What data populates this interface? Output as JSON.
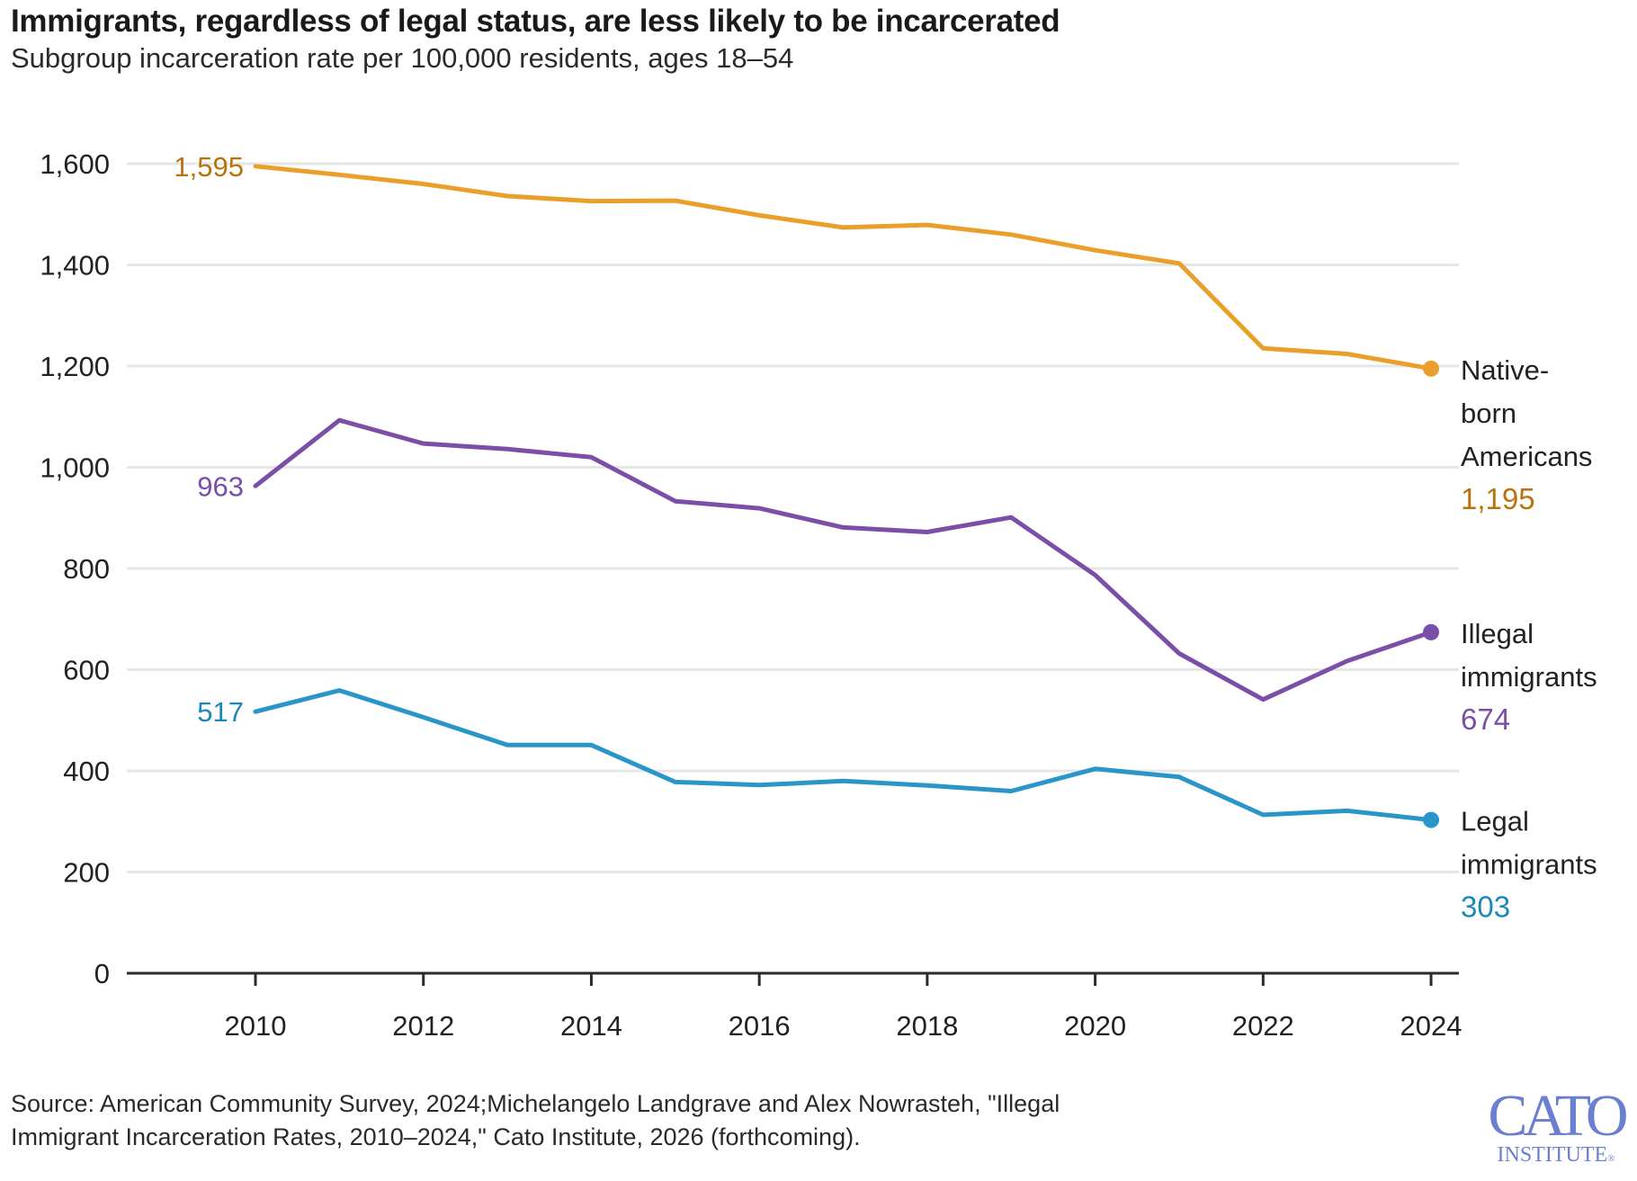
{
  "title": "Immigrants, regardless of legal status, are less likely to be incarcerated",
  "subtitle": "Subgroup incarceration rate per 100,000 residents, ages 18–54",
  "source": {
    "line1": "Source: American Community Survey, 2024;Michelangelo Landgrave and Alex Nowrasteh, \"Illegal",
    "line2": "Immigrant Incarceration Rates, 2010–2024,\" Cato Institute, 2026 (forthcoming)."
  },
  "logo": {
    "main": "CATO",
    "sub": "INSTITUTE",
    "mark": "®",
    "color": "#6b7fd0"
  },
  "chart_data": {
    "type": "line",
    "title": "Immigrants, regardless of legal status, are less likely to be incarcerated",
    "subtitle": "Subgroup incarceration rate per 100,000 residents, ages 18–54",
    "xlabel": "",
    "ylabel": "",
    "x": [
      2010,
      2011,
      2012,
      2013,
      2014,
      2015,
      2016,
      2017,
      2018,
      2019,
      2020,
      2021,
      2022,
      2023,
      2024
    ],
    "xlim": [
      2008.5,
      2024.35
    ],
    "ylim": [
      0,
      1600
    ],
    "x_ticks": [
      2010,
      2012,
      2014,
      2016,
      2018,
      2020,
      2022,
      2024
    ],
    "x_tick_labels": [
      "2010",
      "2012",
      "2014",
      "2016",
      "2018",
      "2020",
      "2022",
      "2024"
    ],
    "y_ticks": [
      0,
      200,
      400,
      600,
      800,
      1000,
      1200,
      1400,
      1600
    ],
    "y_tick_labels": [
      "0",
      "200",
      "400",
      "600",
      "800",
      "1,000",
      "1,200",
      "1,400",
      "1,600"
    ],
    "grid": true,
    "legend": "direct labels at right end of lines",
    "series": [
      {
        "name": "Native-born Americans",
        "label_lines": [
          "Native-",
          "born",
          "Americans"
        ],
        "color": "#eb9f2b",
        "label_color": "#b8730a",
        "values": [
          1595,
          1578,
          1560,
          1536,
          1526,
          1527,
          1498,
          1474,
          1479,
          1460,
          1429,
          1403,
          1235,
          1224,
          1195
        ],
        "start_label": "1,595",
        "end_label": "1,195"
      },
      {
        "name": "Illegal immigrants",
        "label_lines": [
          "Illegal",
          "immigrants"
        ],
        "color": "#7b4ea8",
        "label_color": "#7b4ea8",
        "values": [
          963,
          1093,
          1047,
          1036,
          1020,
          933,
          919,
          881,
          872,
          901,
          787,
          632,
          541,
          617,
          674
        ],
        "start_label": "963",
        "end_label": "674"
      },
      {
        "name": "Legal immigrants",
        "label_lines": [
          "Legal",
          "immigrants"
        ],
        "color": "#2a95c8",
        "label_color": "#1a88b8",
        "values": [
          517,
          559,
          506,
          451,
          451,
          378,
          372,
          380,
          371,
          360,
          404,
          388,
          313,
          321,
          303
        ],
        "start_label": "517",
        "end_label": "303"
      }
    ]
  }
}
